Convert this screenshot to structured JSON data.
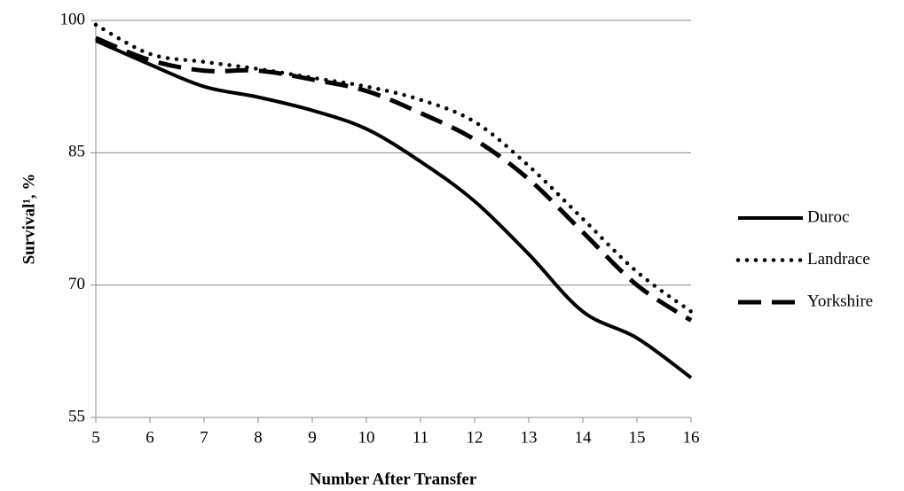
{
  "chart_data": {
    "type": "line",
    "x_label": "Number After Transfer",
    "y_label": "Survival¹, %",
    "x": [
      5,
      6,
      7,
      8,
      9,
      10,
      11,
      12,
      13,
      14,
      15,
      16
    ],
    "xlim": [
      5,
      16
    ],
    "xticks": [
      5,
      6,
      7,
      8,
      9,
      10,
      11,
      12,
      13,
      14,
      15,
      16
    ],
    "ylim": [
      55,
      100
    ],
    "yticks": [
      55,
      70,
      85,
      100
    ],
    "grid": true,
    "legend": "right",
    "series": [
      {
        "name": "Duroc",
        "color": "#000000",
        "style": "solid",
        "values": [
          97.7,
          95.0,
          92.5,
          91.3,
          89.8,
          87.7,
          84.0,
          79.5,
          73.5,
          67.0,
          64.0,
          59.5
        ]
      },
      {
        "name": "Landrace",
        "color": "#000000",
        "style": "dotted",
        "values": [
          99.5,
          96.2,
          95.3,
          94.5,
          93.5,
          92.5,
          91.0,
          88.5,
          83.5,
          77.5,
          71.5,
          67.0
        ]
      },
      {
        "name": "Yorkshire",
        "color": "#000000",
        "style": "dashed",
        "values": [
          98.0,
          95.5,
          94.3,
          94.3,
          93.3,
          92.0,
          89.5,
          86.5,
          82.0,
          76.0,
          70.0,
          66.0
        ]
      }
    ]
  }
}
